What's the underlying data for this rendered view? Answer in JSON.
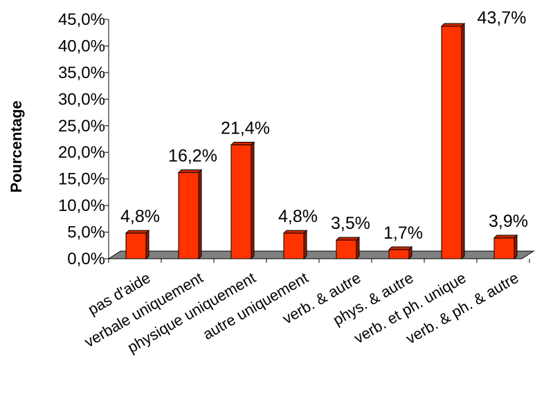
{
  "chart_data": {
    "type": "bar",
    "title": "",
    "xlabel": "",
    "ylabel": "Pourcentage",
    "ylim": [
      0,
      45
    ],
    "yticks": [
      0,
      5,
      10,
      15,
      20,
      25,
      30,
      35,
      40,
      45
    ],
    "ytick_labels": [
      "0,0%",
      "5,0%",
      "10,0%",
      "15,0%",
      "20,0%",
      "25,0%",
      "30,0%",
      "35,0%",
      "40,0%",
      "45,0%"
    ],
    "categories": [
      "pas d'aide",
      "verbale uniquement",
      "physique uniquement",
      "autre uniquement",
      "verb. & autre",
      "phys. & autre",
      "verb. et ph. unique",
      "verb. & ph. & autre"
    ],
    "values": [
      4.8,
      16.2,
      21.4,
      4.8,
      3.5,
      1.7,
      43.7,
      3.9
    ],
    "value_labels": [
      "4,8%",
      "16,2%",
      "21,4%",
      "4,8%",
      "3,5%",
      "1,7%",
      "43,7%",
      "3,9%"
    ],
    "bar_color": "#ff3300",
    "floor_color": "#808080",
    "grid": false,
    "legend": "none"
  }
}
